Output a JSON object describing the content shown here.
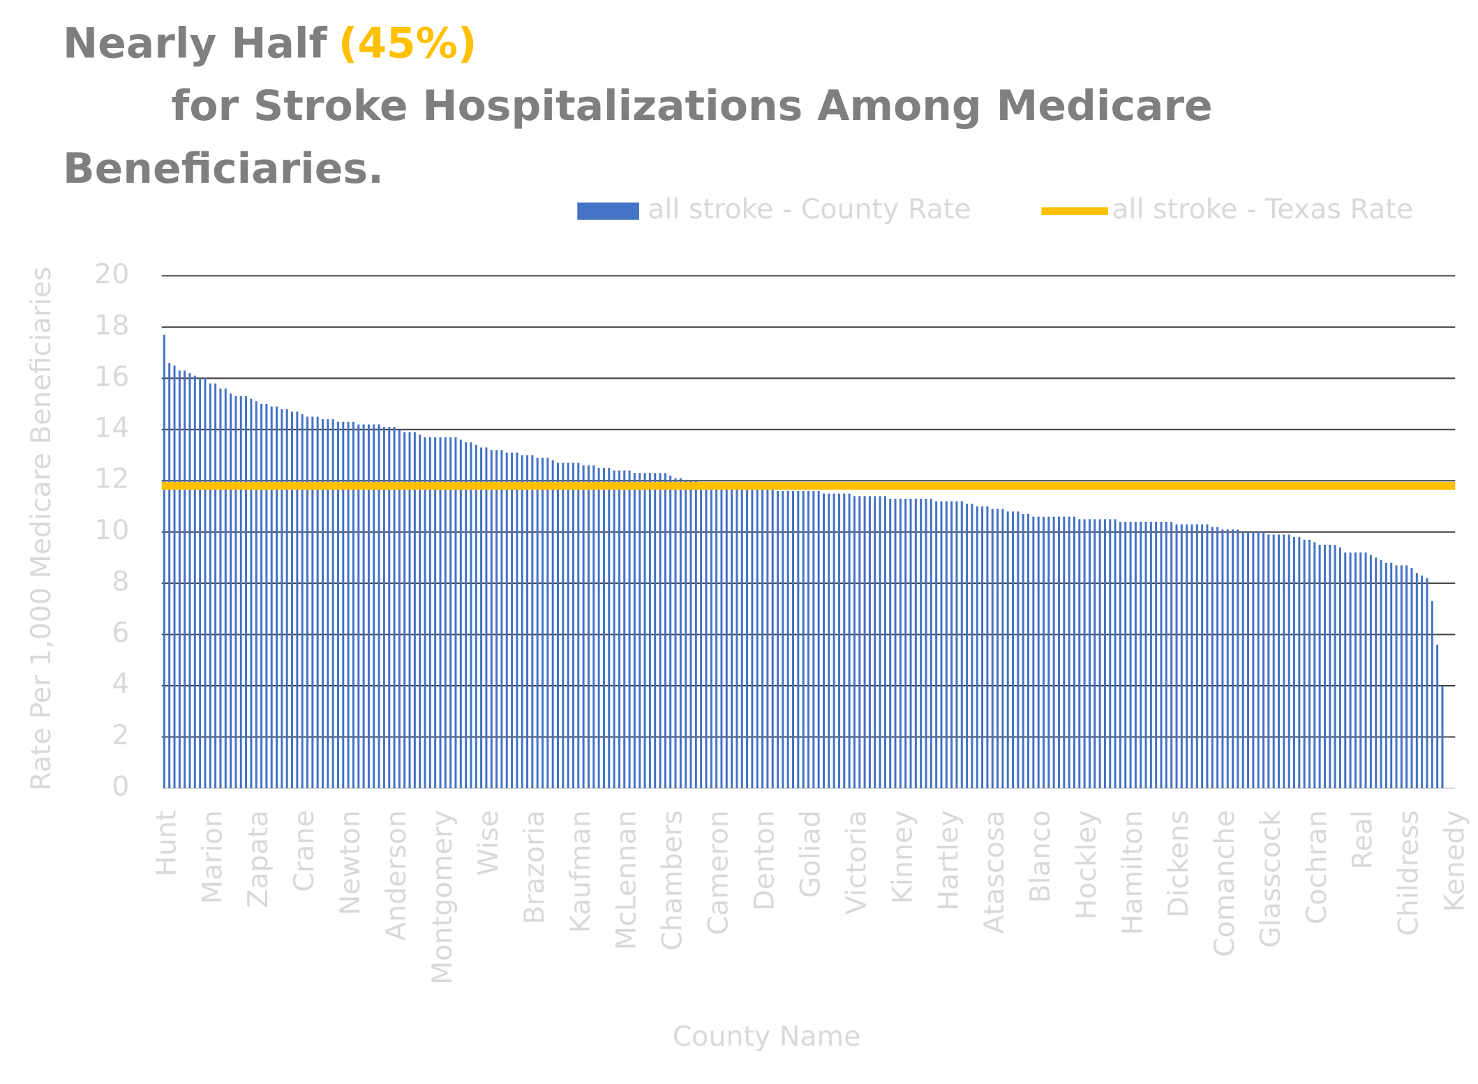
{
  "chart_data": {
    "type": "bar",
    "title": "Nearly Half",
    "title_highlight": "(45%)",
    "title_lines": [
      "for Stroke Hospitalizations Among Medicare",
      "Beneficiaries."
    ],
    "x_label": "County Name",
    "y_label": "Rate Per 1,000 Medicare Beneficiaries",
    "ylim": [
      0,
      20
    ],
    "yticks": [
      0,
      2,
      4,
      6,
      8,
      10,
      12,
      14,
      16,
      18,
      20
    ],
    "grid": true,
    "legend": "top",
    "categories": [
      "Hunt",
      null,
      null,
      null,
      null,
      null,
      null,
      null,
      null,
      "Marion",
      null,
      null,
      null,
      null,
      null,
      null,
      null,
      null,
      "Zapata",
      null,
      null,
      null,
      null,
      null,
      null,
      null,
      null,
      "Crane",
      null,
      null,
      null,
      null,
      null,
      null,
      null,
      null,
      "Newton",
      null,
      null,
      null,
      null,
      null,
      null,
      null,
      null,
      "Anderson",
      null,
      null,
      null,
      null,
      null,
      null,
      null,
      null,
      "Montgomery",
      null,
      null,
      null,
      null,
      null,
      null,
      null,
      null,
      "Wise",
      null,
      null,
      null,
      null,
      null,
      null,
      null,
      null,
      "Brazoria",
      null,
      null,
      null,
      null,
      null,
      null,
      null,
      null,
      "Kaufman",
      null,
      null,
      null,
      null,
      null,
      null,
      null,
      null,
      "McLennan",
      null,
      null,
      null,
      null,
      null,
      null,
      null,
      null,
      "Chambers",
      null,
      null,
      null,
      null,
      null,
      null,
      null,
      null,
      "Cameron",
      null,
      null,
      null,
      null,
      null,
      null,
      null,
      null,
      "Denton",
      null,
      null,
      null,
      null,
      null,
      null,
      null,
      null,
      "Goliad",
      null,
      null,
      null,
      null,
      null,
      null,
      null,
      null,
      "Victoria",
      null,
      null,
      null,
      null,
      null,
      null,
      null,
      null,
      "Kinney",
      null,
      null,
      null,
      null,
      null,
      null,
      null,
      null,
      "Hartley",
      null,
      null,
      null,
      null,
      null,
      null,
      null,
      null,
      "Atascosa",
      null,
      null,
      null,
      null,
      null,
      null,
      null,
      null,
      "Blanco",
      null,
      null,
      null,
      null,
      null,
      null,
      null,
      null,
      "Hockley",
      null,
      null,
      null,
      null,
      null,
      null,
      null,
      null,
      "Hamilton",
      null,
      null,
      null,
      null,
      null,
      null,
      null,
      null,
      "Dickens",
      null,
      null,
      null,
      null,
      null,
      null,
      null,
      null,
      "Comanche",
      null,
      null,
      null,
      null,
      null,
      null,
      null,
      null,
      "Glasscock",
      null,
      null,
      null,
      null,
      null,
      null,
      null,
      null,
      "Cochran",
      null,
      null,
      null,
      null,
      null,
      null,
      null,
      null,
      "Real",
      null,
      null,
      null,
      null,
      null,
      null,
      null,
      null,
      "Childress",
      null,
      null,
      null,
      null,
      null,
      null,
      null,
      null,
      "Kenedy"
    ],
    "series": [
      {
        "name": "all stroke - County Rate",
        "color": "#4472c4",
        "values": [
          17.7,
          16.6,
          16.5,
          16.3,
          16.3,
          16.2,
          16.1,
          16.0,
          16.0,
          15.8,
          15.8,
          15.6,
          15.6,
          15.4,
          15.3,
          15.3,
          15.3,
          15.2,
          15.1,
          15.0,
          15.0,
          14.9,
          14.9,
          14.8,
          14.8,
          14.7,
          14.7,
          14.6,
          14.5,
          14.5,
          14.5,
          14.4,
          14.4,
          14.4,
          14.3,
          14.3,
          14.3,
          14.3,
          14.2,
          14.2,
          14.2,
          14.2,
          14.2,
          14.1,
          14.1,
          14.1,
          14.0,
          13.9,
          13.9,
          13.9,
          13.8,
          13.7,
          13.7,
          13.7,
          13.7,
          13.7,
          13.7,
          13.7,
          13.6,
          13.5,
          13.5,
          13.4,
          13.3,
          13.3,
          13.2,
          13.2,
          13.2,
          13.1,
          13.1,
          13.1,
          13.0,
          13.0,
          13.0,
          12.9,
          12.9,
          12.9,
          12.8,
          12.7,
          12.7,
          12.7,
          12.7,
          12.7,
          12.6,
          12.6,
          12.6,
          12.5,
          12.5,
          12.5,
          12.4,
          12.4,
          12.4,
          12.4,
          12.3,
          12.3,
          12.3,
          12.3,
          12.3,
          12.3,
          12.3,
          12.2,
          12.1,
          12.1,
          12.0,
          12.0,
          12.0,
          11.9,
          11.9,
          11.9,
          11.9,
          11.9,
          11.8,
          11.8,
          11.8,
          11.8,
          11.8,
          11.8,
          11.7,
          11.7,
          11.7,
          11.7,
          11.6,
          11.6,
          11.6,
          11.6,
          11.6,
          11.6,
          11.6,
          11.6,
          11.6,
          11.5,
          11.5,
          11.5,
          11.5,
          11.5,
          11.5,
          11.4,
          11.4,
          11.4,
          11.4,
          11.4,
          11.4,
          11.4,
          11.3,
          11.3,
          11.3,
          11.3,
          11.3,
          11.3,
          11.3,
          11.3,
          11.3,
          11.2,
          11.2,
          11.2,
          11.2,
          11.2,
          11.2,
          11.1,
          11.1,
          11.0,
          11.0,
          11.0,
          10.9,
          10.9,
          10.9,
          10.8,
          10.8,
          10.8,
          10.7,
          10.7,
          10.6,
          10.6,
          10.6,
          10.6,
          10.6,
          10.6,
          10.6,
          10.6,
          10.6,
          10.5,
          10.5,
          10.5,
          10.5,
          10.5,
          10.5,
          10.5,
          10.5,
          10.4,
          10.4,
          10.4,
          10.4,
          10.4,
          10.4,
          10.4,
          10.4,
          10.4,
          10.4,
          10.4,
          10.3,
          10.3,
          10.3,
          10.3,
          10.3,
          10.3,
          10.3,
          10.2,
          10.2,
          10.1,
          10.1,
          10.1,
          10.1,
          10.0,
          10.0,
          10.0,
          10.0,
          10.0,
          9.9,
          9.9,
          9.9,
          9.9,
          9.9,
          9.8,
          9.8,
          9.7,
          9.7,
          9.6,
          9.5,
          9.5,
          9.5,
          9.5,
          9.4,
          9.2,
          9.2,
          9.2,
          9.2,
          9.2,
          9.1,
          9.0,
          8.9,
          8.8,
          8.8,
          8.7,
          8.7,
          8.7,
          8.6,
          8.4,
          8.3,
          8.2,
          7.3,
          5.6,
          4.0,
          null,
          null
        ]
      },
      {
        "name": "all stroke - Texas Rate",
        "color": "#ffc000",
        "type": "line",
        "value": 11.8
      }
    ]
  }
}
